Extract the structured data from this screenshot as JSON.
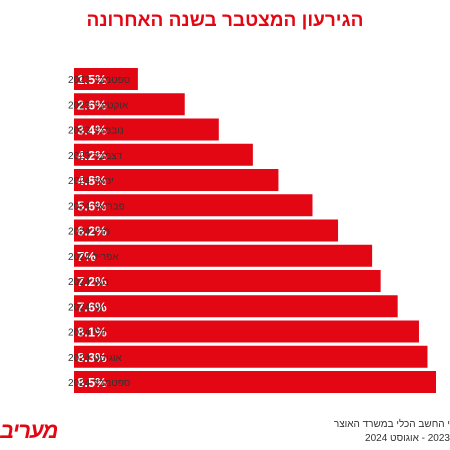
{
  "chart_data": {
    "type": "bar",
    "orientation": "horizontal",
    "title": "הגירעון המצטבר בשנה האחרונה",
    "categories": [
      "ספטמבר 2023",
      "אוקטובר 2023",
      "נובמבר 2023",
      "דצמבר 2023",
      "ינואר 2024",
      "פברואר 2024",
      "מרץ 2024",
      "אפריל 2024",
      "מאי 2024",
      "יוני 2024",
      "יולי 2024",
      "אוגוסט 2024",
      "ספטמבר 2024"
    ],
    "values": [
      1.5,
      2.6,
      3.4,
      4.2,
      4.8,
      5.6,
      6.2,
      7,
      7.2,
      7.6,
      8.1,
      8.3,
      8.5
    ],
    "value_labels": [
      "1.5%",
      "2.6%",
      "3.4%",
      "4.2%",
      "4.8%",
      "5.6%",
      "6.2%",
      "7%",
      "7.2%",
      "7.6%",
      "8.1%",
      "8.3%",
      "8.5%"
    ],
    "xlim": [
      0,
      8.5
    ],
    "grid": false,
    "bar_color": "#e30613"
  },
  "logo": "מעריב",
  "source": {
    "line1": "י החשב הכלי במשרד האוצר",
    "line2": "2023 - אוגוסט 2024"
  }
}
